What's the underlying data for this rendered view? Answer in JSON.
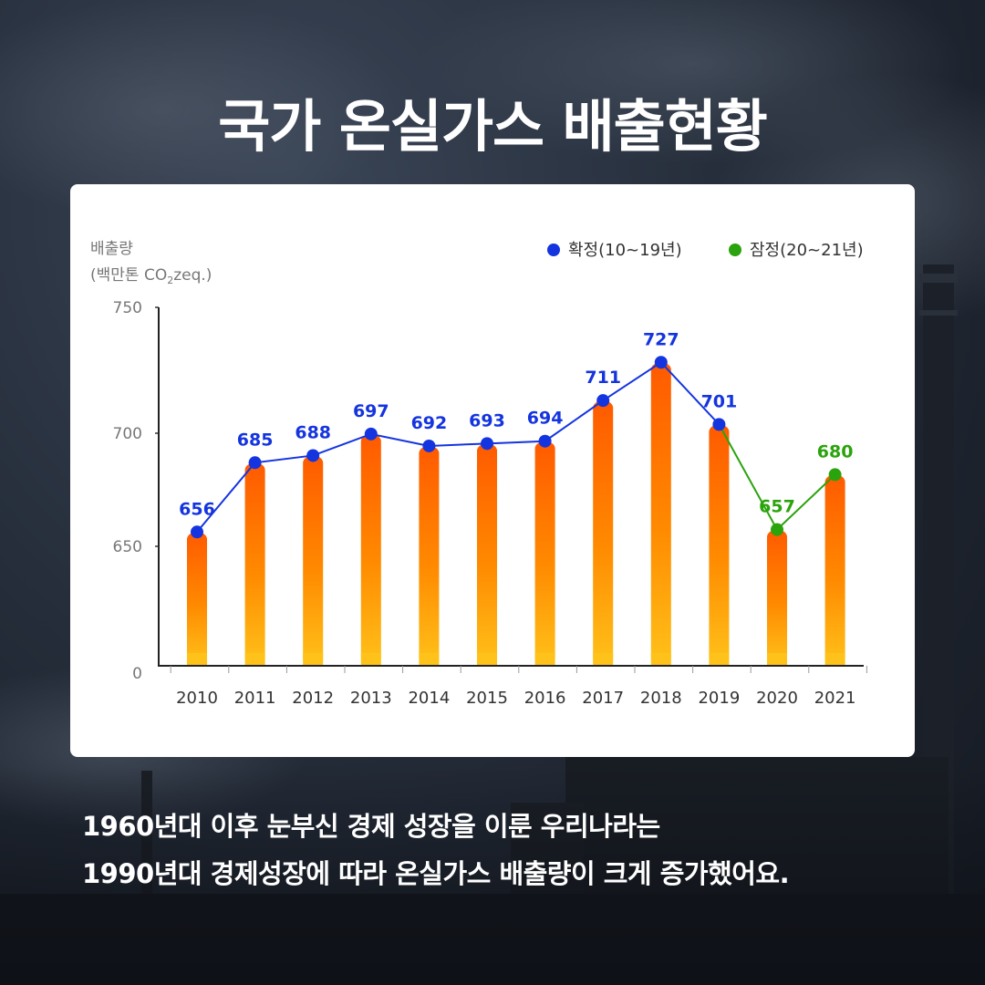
{
  "title": "국가 온실가스 배출현황",
  "caption": {
    "line1": "1960년대 이후 눈부신 경제 성장을 이룬 우리나라는",
    "line2": "1990년대 경제성장에 따라 온실가스 배출량이 크게 증가했어요."
  },
  "colors": {
    "confirmed": "#1434e0",
    "provisional": "#2aa30c",
    "bar_top": "#ff5a00",
    "bar_bottom": "#ffc21a"
  },
  "chart_data": {
    "type": "bar",
    "ylabel_line1": "배출량",
    "ylabel_line2_prefix": "(백만톤 CO",
    "ylabel_line2_sub": "2",
    "ylabel_line2_suffix": "zeq.)",
    "y_ticks": [
      "750",
      "700",
      "650",
      "0"
    ],
    "axis_break": true,
    "grid": false,
    "legend_position": "top-right",
    "legend": [
      {
        "label": "확정(10~19년)",
        "color": "#1434e0"
      },
      {
        "label": "잠정(20~21년)",
        "color": "#2aa30c"
      }
    ],
    "categories": [
      "2010",
      "2011",
      "2012",
      "2013",
      "2014",
      "2015",
      "2016",
      "2017",
      "2018",
      "2019",
      "2020",
      "2021"
    ],
    "values": [
      656,
      685,
      688,
      697,
      692,
      693,
      694,
      711,
      727,
      701,
      657,
      680
    ],
    "series": [
      {
        "name": "확정(10~19년)",
        "from_index": 0,
        "to_index": 9,
        "color": "#1434e0"
      },
      {
        "name": "잠정(20~21년)",
        "from_index": 9,
        "to_index": 11,
        "color": "#2aa30c"
      }
    ]
  }
}
